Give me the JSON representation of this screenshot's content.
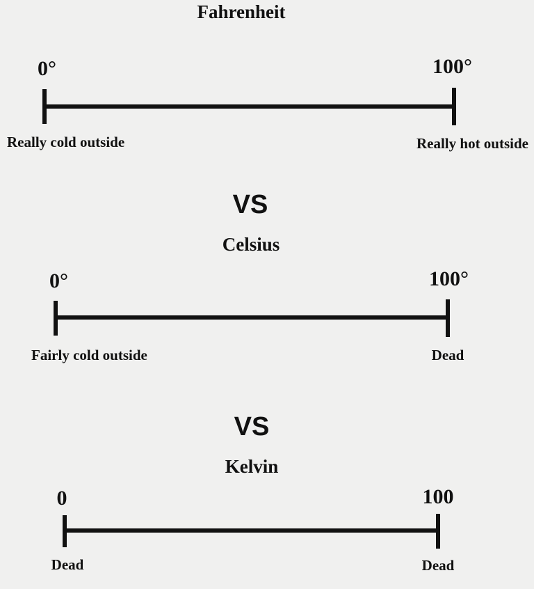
{
  "scales": [
    {
      "title": "Fahrenheit",
      "low": "0°",
      "high": "100°",
      "low_desc": "Really cold outside",
      "high_desc": "Really hot outside"
    },
    {
      "title": "Celsius",
      "low": "0°",
      "high": "100°",
      "low_desc": "Fairly cold outside",
      "high_desc": "Dead"
    },
    {
      "title": "Kelvin",
      "low": "0",
      "high": "100",
      "low_desc": "Dead",
      "high_desc": "Dead"
    }
  ],
  "separators": [
    "VS",
    "VS"
  ]
}
